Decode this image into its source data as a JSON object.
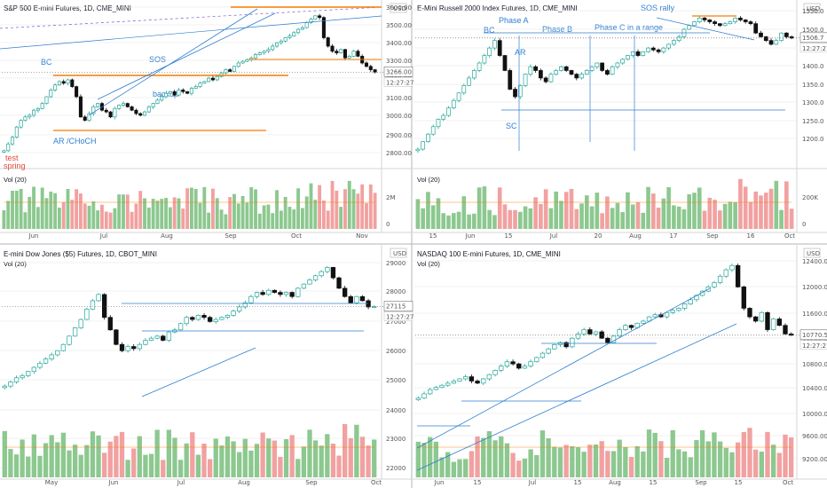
{
  "colors": {
    "up": "#26a69a",
    "down": "#111111",
    "volUp": "#8cc88f",
    "volDown": "#f1a1a0",
    "orange": "#f57c00",
    "blue": "#2f7fd1",
    "purple": "#7b5cc9",
    "grid": "#e5e5e5"
  },
  "charts": [
    {
      "id": "es",
      "title": "S&P 500 E-mini Futures, 1D, CME_MINI",
      "volume_label": "Vol (20)",
      "currency": "USD",
      "last_price": "3266.00",
      "countdown": "12:27:27",
      "y_ticks": [
        "3600.00",
        "3500.00",
        "3400.00",
        "3300.00",
        "3200.00",
        "3100.00",
        "3000.00",
        "2900.00",
        "2800.00"
      ],
      "x_ticks": [
        "Jun",
        "Jul",
        "Aug",
        "Sep",
        "Oct",
        "Nov"
      ],
      "vol_ticks": [
        "2M",
        "0"
      ],
      "annotations": [
        "BC",
        "SOS",
        "backup",
        "AR /CHoCH",
        "test",
        "spring"
      ]
    },
    {
      "id": "rty",
      "title": "E-Mini Russell 2000 Index Futures, 1D, CME_MINI",
      "volume_label": "Vol (20)",
      "currency": "USD",
      "last_price": "1506.7",
      "countdown": "12:27:27",
      "y_ticks": [
        "1550.0",
        "1500.0",
        "1450.0",
        "1400.0",
        "1350.0",
        "1300.0",
        "1250.0",
        "1200.0"
      ],
      "x_ticks": [
        "15",
        "Jun",
        "15",
        "Jul",
        "20",
        "Aug",
        "17",
        "Sep",
        "16",
        "Oct"
      ],
      "vol_ticks": [
        "200K",
        "0"
      ],
      "annotations": [
        "SOS rally",
        "Phase A",
        "BC",
        "Phase B",
        "Phase C in  a range",
        "AR",
        "SC"
      ]
    },
    {
      "id": "ym",
      "title": "E-mini Dow Jones ($5) Futures, 1D, CBOT_MINI",
      "volume_label": "Vol (20)",
      "currency": "USD",
      "last_price": "27115",
      "countdown": "12:27:27",
      "y_ticks": [
        "29000",
        "28000",
        "27000",
        "26000",
        "25000",
        "24000",
        "23000",
        "22000"
      ],
      "x_ticks": [
        "May",
        "Jun",
        "Jul",
        "Aug",
        "Sep",
        "Oct"
      ],
      "vol_ticks": [],
      "annotations": []
    },
    {
      "id": "nq",
      "title": "NASDAQ 100 E-mini Futures, 1D, CME_MINI",
      "volume_label": "Vol (20)",
      "currency": "USD",
      "last_price": "10770.50",
      "countdown": "12:27:27",
      "y_ticks": [
        "12400.00",
        "12000.00",
        "11600.00",
        "11200.00",
        "10800.00",
        "10400.00",
        "10000.00",
        "9600.00",
        "9200.00"
      ],
      "x_ticks": [
        "Jun",
        "15",
        "Jul",
        "15",
        "Aug",
        "15",
        "Sep",
        "15",
        "Oct"
      ],
      "vol_ticks": [],
      "annotations": []
    }
  ],
  "chart_data": [
    {
      "type": "candlestick",
      "title": "S&P 500 E-mini Futures, 1D, CME_MINI",
      "ylim": [
        2720,
        3620
      ],
      "closes": [
        2800,
        2840,
        2880,
        2940,
        2980,
        3000,
        3010,
        3040,
        3050,
        3080,
        3120,
        3160,
        3190,
        3210,
        3200,
        3220,
        3180,
        3120,
        3000,
        2980,
        3020,
        3060,
        3080,
        3040,
        3030,
        3000,
        3050,
        3070,
        3080,
        3060,
        3040,
        3020,
        3010,
        3030,
        3060,
        3080,
        3100,
        3120,
        3140,
        3150,
        3130,
        3160,
        3150,
        3140,
        3170,
        3180,
        3200,
        3210,
        3230,
        3220,
        3240,
        3260,
        3280,
        3270,
        3300,
        3320,
        3330,
        3340,
        3350,
        3370,
        3380,
        3390,
        3400,
        3420,
        3440,
        3450,
        3470,
        3480,
        3500,
        3520,
        3530,
        3560,
        3580,
        3600,
        3590,
        3470,
        3420,
        3390,
        3380,
        3400,
        3350,
        3360,
        3390,
        3360,
        3320,
        3300,
        3280,
        3266
      ]
    },
    {
      "type": "candlestick",
      "title": "E-Mini Russell 2000 Index Futures, 1D, CME_MINI",
      "ylim": [
        1170,
        1575
      ],
      "closes": [
        1210,
        1230,
        1250,
        1270,
        1290,
        1300,
        1320,
        1340,
        1360,
        1380,
        1400,
        1420,
        1440,
        1460,
        1480,
        1500,
        1460,
        1420,
        1370,
        1350,
        1380,
        1410,
        1430,
        1420,
        1400,
        1390,
        1410,
        1420,
        1430,
        1420,
        1410,
        1400,
        1410,
        1420,
        1430,
        1440,
        1420,
        1410,
        1430,
        1440,
        1450,
        1460,
        1470,
        1460,
        1470,
        1480,
        1475,
        1470,
        1480,
        1490,
        1500,
        1510,
        1530,
        1540,
        1550,
        1560,
        1555,
        1550,
        1545,
        1540,
        1545,
        1550,
        1560,
        1555,
        1550,
        1545,
        1520,
        1510,
        1500,
        1490,
        1500,
        1520,
        1510,
        1506.7
      ]
    },
    {
      "type": "candlestick",
      "title": "E-mini Dow Jones ($5) Futures, 1D, CBOT_MINI",
      "ylim": [
        21900,
        29400
      ],
      "closes": [
        23300,
        23500,
        23700,
        23800,
        24000,
        24200,
        24400,
        24600,
        24800,
        25000,
        25300,
        25700,
        26100,
        26500,
        27000,
        27400,
        27700,
        26600,
        26000,
        25300,
        25000,
        25200,
        25100,
        25300,
        25500,
        25600,
        25700,
        25500,
        25900,
        26000,
        26300,
        26600,
        26500,
        26700,
        26600,
        26400,
        26500,
        26600,
        26700,
        26900,
        27100,
        27300,
        27600,
        27800,
        27700,
        27900,
        27800,
        27700,
        27800,
        27600,
        28000,
        28200,
        28400,
        28600,
        28800,
        29000,
        28500,
        28000,
        27600,
        27300,
        27600,
        27400,
        27100,
        27115
      ]
    },
    {
      "type": "candlestick",
      "title": "NASDAQ 100 E-mini Futures, 1D, CME_MINI",
      "ylim": [
        8900,
        12550
      ],
      "closes": [
        9300,
        9400,
        9500,
        9550,
        9600,
        9650,
        9700,
        9750,
        9800,
        9700,
        9650,
        9750,
        9850,
        9950,
        10050,
        10150,
        10100,
        10000,
        10050,
        10150,
        10250,
        10350,
        10450,
        10550,
        10600,
        10500,
        10700,
        10800,
        10900,
        10800,
        10850,
        10700,
        10600,
        10750,
        10900,
        11000,
        10950,
        11050,
        11100,
        11200,
        11250,
        11200,
        11300,
        11350,
        11400,
        11500,
        11600,
        11700,
        11800,
        11900,
        12000,
        12150,
        12300,
        12400,
        11900,
        11400,
        11200,
        11100,
        11300,
        10900,
        11150,
        11000,
        10800,
        10770.5
      ]
    }
  ]
}
